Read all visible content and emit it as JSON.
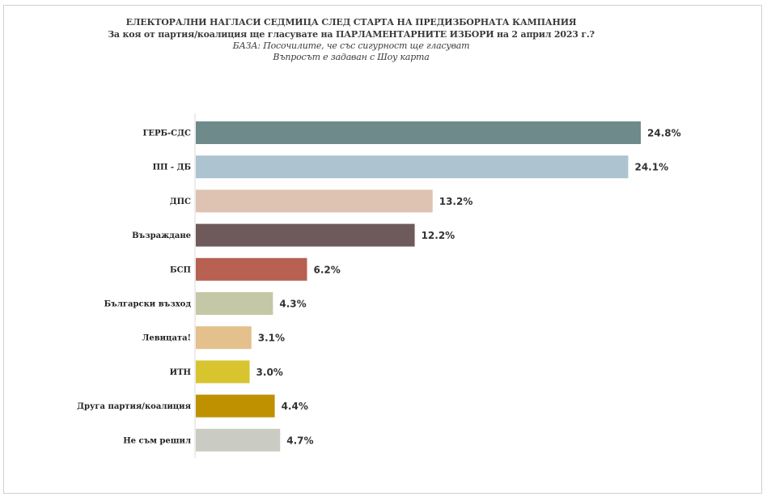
{
  "header": {
    "title": "ЕЛЕКТОРАЛНИ НАГЛАСИ СЕДМИЦА СЛЕД СТАРТА НА ПРЕДИЗБОРНАТА КАМПАНИЯ",
    "question": "За коя от партия/коалиция ще гласувате на ПАРЛАМЕНТАРНИТЕ ИЗБОРИ на 2 април 2023 г.?",
    "base": "БАЗА: Посочилите, че със сигурност ще гласуват",
    "note": "Въпросът е задаван с Шоу карта"
  },
  "chart_data": {
    "type": "bar",
    "orientation": "horizontal",
    "categories": [
      "ГЕРБ-СДС",
      "ПП - ДБ",
      "ДПС",
      "Възраждане",
      "БСП",
      "Български възход",
      "Левицата!",
      "ИТН",
      "Друга партия/коалиция",
      "Не съм решил"
    ],
    "values": [
      24.8,
      24.1,
      13.2,
      12.2,
      6.2,
      4.3,
      3.1,
      3.0,
      4.4,
      4.7
    ],
    "value_labels": [
      "24.8%",
      "24.1%",
      "13.2%",
      "12.2%",
      "6.2%",
      "4.3%",
      "3.1%",
      "3.0%",
      "4.4%",
      "4.7%"
    ],
    "colors": [
      "#6f8a8b",
      "#adc4d0",
      "#dfc3b2",
      "#6e5a5b",
      "#b86052",
      "#c5c8a6",
      "#e3c08c",
      "#d7c42f",
      "#bf9100",
      "#cacbc3"
    ],
    "unit": "%",
    "xlim": [
      0,
      25
    ],
    "grid": false,
    "legend": "none"
  }
}
